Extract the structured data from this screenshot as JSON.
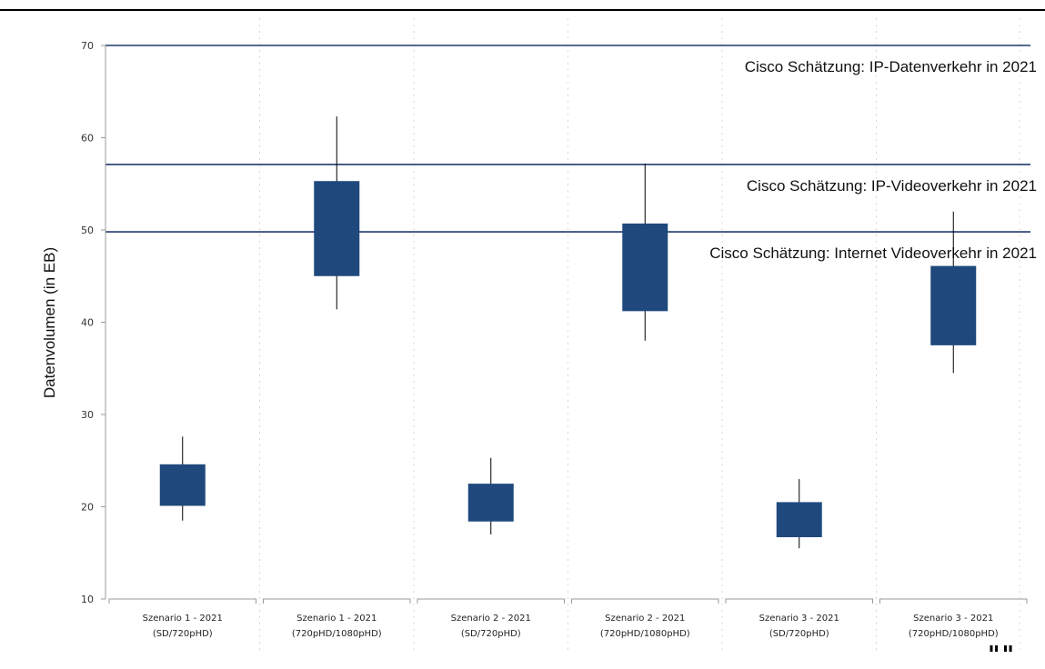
{
  "chart_data": {
    "type": "box",
    "title": "",
    "xlabel": "",
    "ylabel": "Datenvolumen (in EB)",
    "ylim": [
      10,
      70
    ],
    "yticks": [
      10,
      20,
      30,
      40,
      50,
      60,
      70
    ],
    "categories": [
      {
        "line1": "Szenario 1 - 2021",
        "line2": "(SD/720pHD)"
      },
      {
        "line1": "Szenario 1 - 2021",
        "line2": "(720pHD/1080pHD)"
      },
      {
        "line1": "Szenario 2 - 2021",
        "line2": "(SD/720pHD)"
      },
      {
        "line1": "Szenario 2 - 2021",
        "line2": "(720pHD/1080pHD)"
      },
      {
        "line1": "Szenario 3 - 2021",
        "line2": "(SD/720pHD)"
      },
      {
        "line1": "Szenario 3 - 2021",
        "line2": "(720pHD/1080pHD)"
      }
    ],
    "boxes": [
      {
        "low": 18.5,
        "q1": 20.1,
        "q3": 24.6,
        "high": 27.6
      },
      {
        "low": 41.4,
        "q1": 45.0,
        "q3": 55.3,
        "high": 62.3
      },
      {
        "low": 17.0,
        "q1": 18.4,
        "q3": 22.5,
        "high": 25.3
      },
      {
        "low": 38.0,
        "q1": 41.2,
        "q3": 50.7,
        "high": 57.2
      },
      {
        "low": 15.5,
        "q1": 16.7,
        "q3": 20.5,
        "high": 23.0
      },
      {
        "low": 34.5,
        "q1": 37.5,
        "q3": 46.1,
        "high": 52.0
      }
    ],
    "reference_lines": [
      {
        "value": 70.0,
        "label": "Cisco Schätzung: IP-Datenverkehr in 2021"
      },
      {
        "value": 57.1,
        "label": "Cisco Schätzung: IP-Videoverkehr in 2021"
      },
      {
        "value": 49.8,
        "label": "Cisco Schätzung: Internet Videoverkehr in 2021"
      }
    ],
    "colors": {
      "box": "#1f497d",
      "reference": "#1f3a6e",
      "whisker": "#000000",
      "grid": "#d9d9d9"
    },
    "grid": "dashed vertical separators"
  },
  "footer": {
    "mark": "\"\""
  }
}
